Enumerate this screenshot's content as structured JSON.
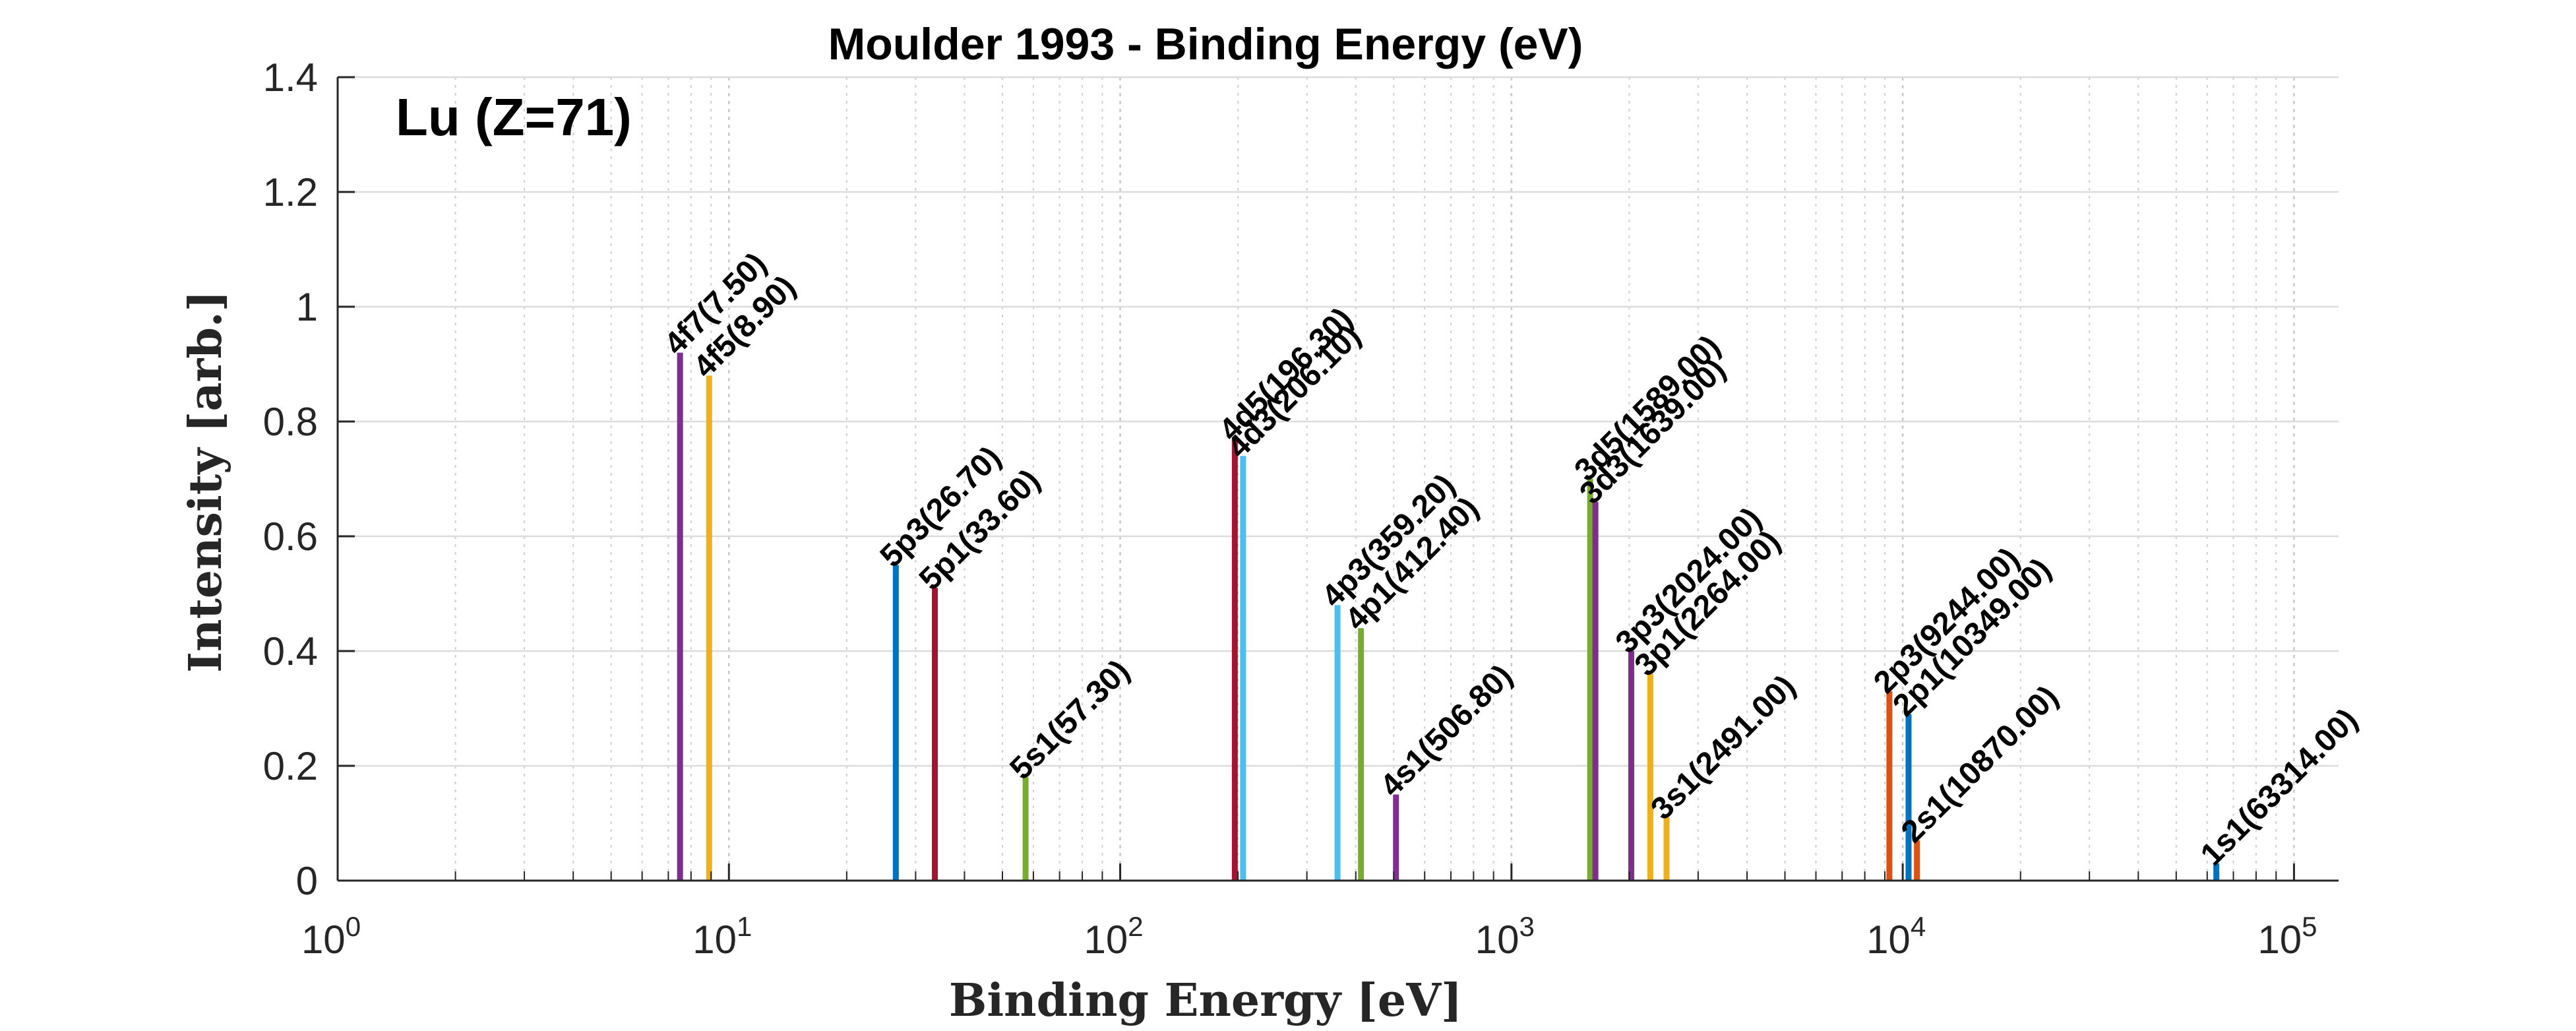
{
  "chart_data": {
    "type": "bar",
    "title": "Moulder 1993 - Binding Energy (eV)",
    "xlabel": "Binding Energy [eV]",
    "ylabel": "Intensity [arb.]",
    "annotation": "Lu (Z=71)",
    "x_scale": "log",
    "xlim": [
      1,
      130000
    ],
    "ylim": [
      0,
      1.4
    ],
    "grid": true,
    "x_ticks": [
      {
        "value": 1,
        "base": "10",
        "exp": "0"
      },
      {
        "value": 10,
        "base": "10",
        "exp": "1"
      },
      {
        "value": 100,
        "base": "10",
        "exp": "2"
      },
      {
        "value": 1000,
        "base": "10",
        "exp": "3"
      },
      {
        "value": 10000,
        "base": "10",
        "exp": "4"
      },
      {
        "value": 100000,
        "base": "10",
        "exp": "5"
      }
    ],
    "y_ticks": [
      {
        "value": 0,
        "label": "0"
      },
      {
        "value": 0.2,
        "label": "0.2"
      },
      {
        "value": 0.4,
        "label": "0.4"
      },
      {
        "value": 0.6,
        "label": "0.6"
      },
      {
        "value": 0.8,
        "label": "0.8"
      },
      {
        "value": 1.0,
        "label": "1"
      },
      {
        "value": 1.2,
        "label": "1.2"
      },
      {
        "value": 1.4,
        "label": "1.4"
      }
    ],
    "peaks": [
      {
        "label": "4f7(7.50)",
        "x": 7.5,
        "y": 0.92,
        "color": "#7E2F8E"
      },
      {
        "label": "4f5(8.90)",
        "x": 8.9,
        "y": 0.88,
        "color": "#EDB120"
      },
      {
        "label": "5p3(26.70)",
        "x": 26.7,
        "y": 0.55,
        "color": "#0072BD"
      },
      {
        "label": "5p1(33.60)",
        "x": 33.6,
        "y": 0.51,
        "color": "#A2142F"
      },
      {
        "label": "5s1(57.30)",
        "x": 57.3,
        "y": 0.18,
        "color": "#77AC30"
      },
      {
        "label": "4d5(196.30)",
        "x": 196.3,
        "y": 0.77,
        "color": "#A2142F"
      },
      {
        "label": "4d3(206.10)",
        "x": 206.1,
        "y": 0.74,
        "color": "#4DBEEE"
      },
      {
        "label": "4p3(359.20)",
        "x": 359.2,
        "y": 0.48,
        "color": "#4DBEEE"
      },
      {
        "label": "4p1(412.40)",
        "x": 412.4,
        "y": 0.44,
        "color": "#77AC30"
      },
      {
        "label": "4s1(506.80)",
        "x": 506.8,
        "y": 0.15,
        "color": "#7E2F8E"
      },
      {
        "label": "3d5(1589.00)",
        "x": 1589,
        "y": 0.7,
        "color": "#77AC30"
      },
      {
        "label": "3d3(1639.00)",
        "x": 1639,
        "y": 0.66,
        "color": "#7E2F8E"
      },
      {
        "label": "3p3(2024.00)",
        "x": 2024,
        "y": 0.4,
        "color": "#7E2F8E"
      },
      {
        "label": "3p1(2264.00)",
        "x": 2264,
        "y": 0.36,
        "color": "#EDB120"
      },
      {
        "label": "3s1(2491.00)",
        "x": 2491,
        "y": 0.11,
        "color": "#EDB120"
      },
      {
        "label": "2p3(9244.00)",
        "x": 9244,
        "y": 0.33,
        "color": "#D95319"
      },
      {
        "label": "2p1(10349.00)",
        "x": 10349,
        "y": 0.29,
        "color": "#0072BD"
      },
      {
        "label": "2s1(10870.00)",
        "x": 10870,
        "y": 0.07,
        "color": "#D95319"
      },
      {
        "label": "1s1(63314.00)",
        "x": 63314,
        "y": 0.03,
        "color": "#0072BD"
      }
    ]
  }
}
